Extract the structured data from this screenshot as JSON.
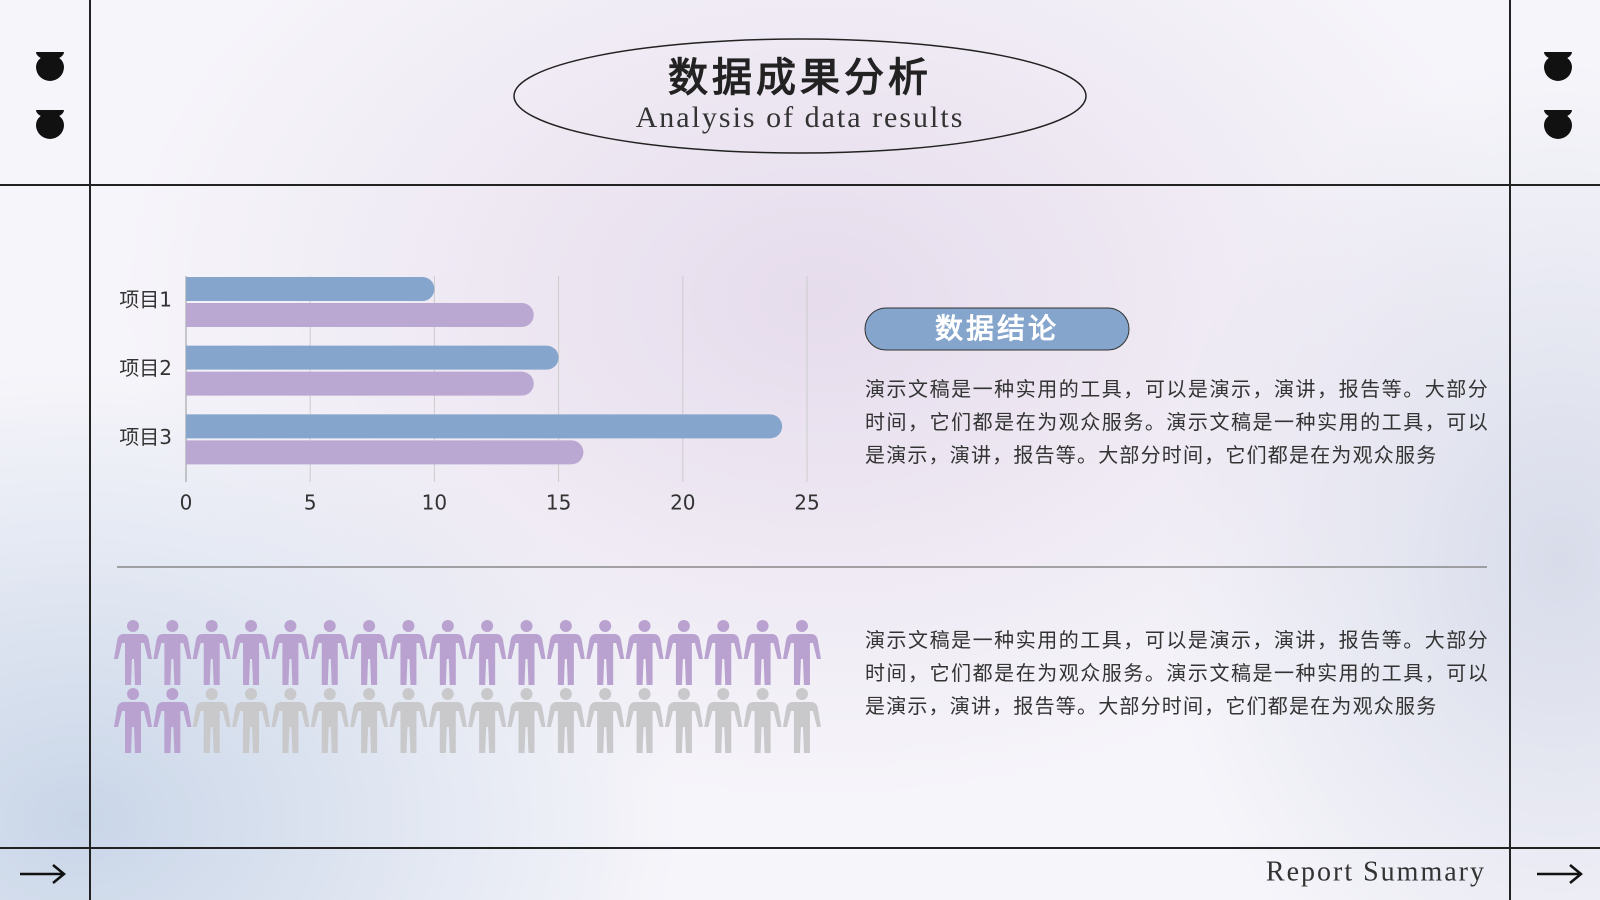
{
  "header": {
    "title": "数据成果分析",
    "subtitle": "Analysis of data results"
  },
  "chart_data": {
    "type": "bar",
    "orientation": "horizontal",
    "categories": [
      "项目1",
      "项目2",
      "项目3"
    ],
    "series": [
      {
        "color": "#85a5cc",
        "values": [
          10,
          15,
          24
        ]
      },
      {
        "color": "#bba8d2",
        "values": [
          14,
          14,
          16
        ]
      }
    ],
    "xlim": [
      0,
      25
    ],
    "xticks": [
      0,
      5,
      10,
      15,
      20,
      25
    ],
    "grid": true
  },
  "conclusion": {
    "title": "数据结论",
    "paragraphs": [
      "演示文稿是一种实用的工具，可以是演示，演讲，报告等。大部分时间，它们都是在为观众服务。演示文稿是一种实用的工具，可以是演示，演讲，报告等。大部分时间，它们都是在为观众服务",
      "演示文稿是一种实用的工具，可以是演示，演讲，报告等。大部分时间，它们都是在为观众服务。演示文稿是一种实用的工具，可以是演示，演讲，报告等。大部分时间，它们都是在为观众服务"
    ]
  },
  "pictogram": {
    "filled": 20,
    "total": 36,
    "per_row": 18,
    "filled_color": "#b9a2d0",
    "empty_color": "#c9c9cc"
  },
  "footer": {
    "label": "Report Summary"
  }
}
